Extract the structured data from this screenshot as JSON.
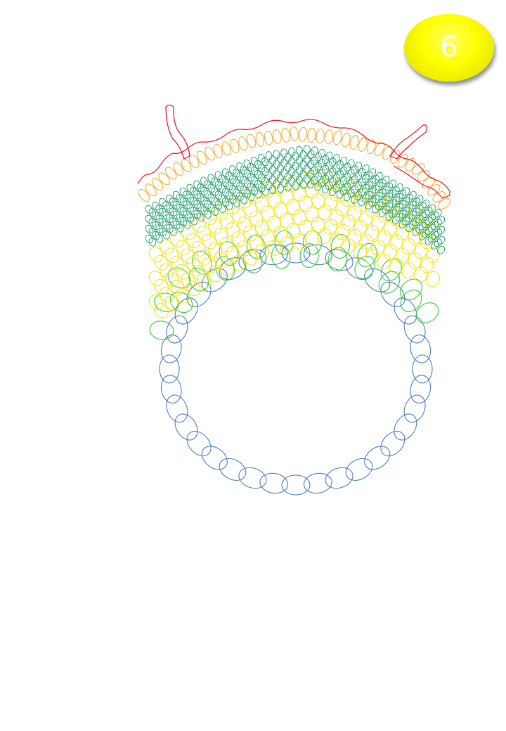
{
  "badge": {
    "number": "6"
  },
  "colors": {
    "epidermis": "#e8101a",
    "outer_layer": "#f5a623",
    "dark_green_layer": "#1a9a6a",
    "yellow_layer": "#f2e40a",
    "green_layer": "#33cc33",
    "blue_ring": "#4a7cc4",
    "badge_fill": "#ffff00",
    "badge_text": "#ffffff"
  }
}
